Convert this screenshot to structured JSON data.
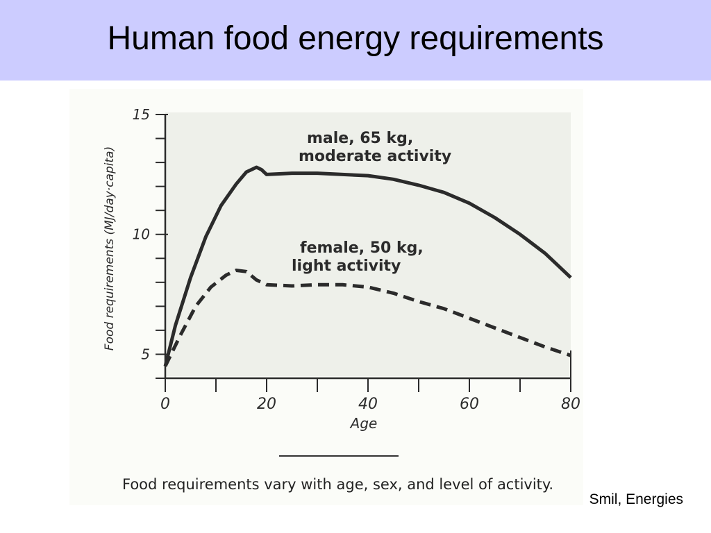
{
  "slide": {
    "title": "Human food energy requirements",
    "caption": "Food requirements vary with age, sex, and level of activity.",
    "credit": "Smil, Energies"
  },
  "chart_data": {
    "type": "line",
    "title": "",
    "xlabel": "Age",
    "ylabel": "Food requirements (MJ/day·capita)",
    "xlim": [
      0,
      80
    ],
    "ylim": [
      4,
      15
    ],
    "x_ticks": [
      0,
      20,
      40,
      60,
      80
    ],
    "y_ticks": [
      5,
      10,
      15
    ],
    "grid": false,
    "series": [
      {
        "name": "male, 65 kg, moderate activity",
        "label_lines": [
          "male, 65 kg,",
          "moderate activity"
        ],
        "style": "solid",
        "color": "#2b2b2b",
        "x": [
          0,
          2,
          5,
          8,
          11,
          14,
          16,
          18,
          19,
          20,
          25,
          30,
          35,
          40,
          45,
          50,
          55,
          60,
          65,
          70,
          75,
          80
        ],
        "y": [
          4.5,
          6.2,
          8.2,
          9.9,
          11.2,
          12.1,
          12.6,
          12.8,
          12.7,
          12.5,
          12.55,
          12.55,
          12.5,
          12.45,
          12.3,
          12.05,
          11.75,
          11.3,
          10.7,
          10.0,
          9.2,
          8.2
        ]
      },
      {
        "name": "female, 50 kg, light activity",
        "label_lines": [
          "female, 50 kg,",
          "light activity"
        ],
        "style": "dashed",
        "color": "#2b2b2b",
        "x": [
          0,
          3,
          6,
          9,
          12,
          14,
          16,
          18,
          20,
          25,
          30,
          35,
          40,
          45,
          50,
          55,
          60,
          65,
          70,
          75,
          80
        ],
        "y": [
          4.5,
          5.8,
          7.0,
          7.8,
          8.3,
          8.5,
          8.45,
          8.1,
          7.9,
          7.85,
          7.9,
          7.9,
          7.8,
          7.55,
          7.2,
          6.9,
          6.5,
          6.1,
          5.7,
          5.3,
          4.95
        ]
      }
    ]
  }
}
